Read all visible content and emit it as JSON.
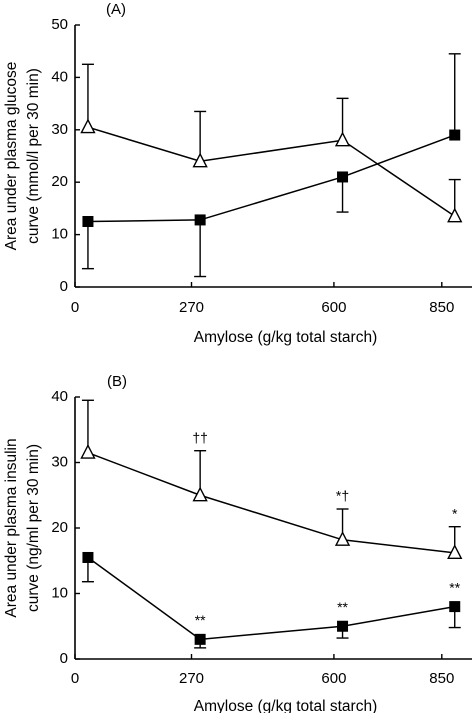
{
  "chart_data": [
    {
      "type": "line",
      "panel_label": "(A)",
      "xlabel": "Amylose (g/kg total starch)",
      "ylabel_lines": [
        "Area under plasma glucose",
        "curve (mmol/l per 30 min)"
      ],
      "x_ticks": [
        "0",
        "270",
        "600",
        "850"
      ],
      "y_ticks": [
        0,
        10,
        20,
        30,
        40,
        50
      ],
      "ylim": [
        0,
        50
      ],
      "grid": false,
      "legend": "none",
      "series": [
        {
          "marker": "open-triangle",
          "x": [
            30,
            290,
            620,
            880
          ],
          "y": [
            30.5,
            24,
            28,
            13.5
          ],
          "err_up": [
            12,
            9.5,
            8,
            7
          ],
          "err_down": [
            0,
            0,
            0,
            0
          ],
          "annotations": [
            "",
            "",
            "",
            ""
          ]
        },
        {
          "marker": "filled-square",
          "x": [
            30,
            290,
            620,
            880
          ],
          "y": [
            12.5,
            12.8,
            21,
            29
          ],
          "err_up": [
            0,
            0,
            0,
            15.5
          ],
          "err_down": [
            9,
            10.8,
            6.7,
            0
          ],
          "annotations": [
            "",
            "",
            "",
            ""
          ]
        }
      ]
    },
    {
      "type": "line",
      "panel_label": "(B)",
      "xlabel": "Amylose (g/kg total starch)",
      "ylabel_lines": [
        "Area under plasma insulin",
        "curve (ng/ml per 30 min)"
      ],
      "x_ticks": [
        "0",
        "270",
        "600",
        "850"
      ],
      "y_ticks": [
        0,
        10,
        20,
        30,
        40
      ],
      "ylim": [
        0,
        40
      ],
      "grid": false,
      "legend": "none",
      "series": [
        {
          "marker": "open-triangle",
          "x": [
            30,
            290,
            620,
            880
          ],
          "y": [
            31.5,
            25,
            18.2,
            16.2
          ],
          "err_up": [
            8,
            6.8,
            4.7,
            4
          ],
          "err_down": [
            0,
            0,
            0,
            0
          ],
          "annotations": [
            "",
            "††",
            "*†",
            "*"
          ]
        },
        {
          "marker": "filled-square",
          "x": [
            30,
            290,
            620,
            880
          ],
          "y": [
            15.5,
            3,
            5,
            8
          ],
          "err_up": [
            0,
            0,
            0,
            0
          ],
          "err_down": [
            3.7,
            1.3,
            1.8,
            3.2
          ],
          "annotations": [
            "",
            "**",
            "**",
            "**"
          ]
        }
      ]
    }
  ]
}
